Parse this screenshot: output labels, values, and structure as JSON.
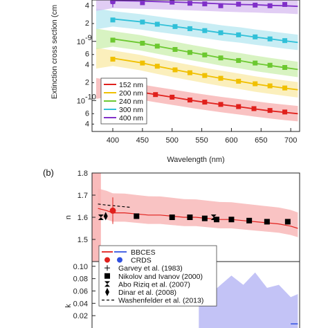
{
  "chart_data": [
    {
      "type": "line",
      "panel": "a",
      "ylabel": "Extinction cross section (cm",
      "xlabel": "Wavelength (nm)",
      "xlim": [
        365,
        715
      ],
      "ylim": [
        3e-11,
        5e-09
      ],
      "yscale": "log",
      "xticks": [
        400,
        450,
        500,
        550,
        600,
        650,
        700
      ],
      "ydecades": [
        {
          "label": "10",
          "exp": "-9",
          "value": 1e-09
        },
        {
          "label": "10",
          "exp": "-10",
          "value": 1e-10
        }
      ],
      "yminor": [
        {
          "label": "4",
          "value": 4e-09
        },
        {
          "label": "2",
          "value": 2e-09
        },
        {
          "label": "6",
          "value": 6e-10
        },
        {
          "label": "4",
          "value": 4e-10
        },
        {
          "label": "2",
          "value": 2e-10
        },
        {
          "label": "6",
          "value": 6e-11
        },
        {
          "label": "4",
          "value": 4e-11
        }
      ],
      "legend": {
        "placement": "bottom-left",
        "entries": [
          "152 nm",
          "200 nm",
          "240 nm",
          "300 nm",
          "400 nm"
        ]
      },
      "series": [
        {
          "name": "152 nm",
          "color": "#e0201c",
          "band_color": "#f6a8a8",
          "x": [
            400,
            445,
            475,
            505,
            535,
            560,
            585,
            615,
            640,
            665,
            690,
            712
          ],
          "y": [
            1.6e-10,
            1.4e-10,
            1.25e-10,
            1.12e-10,
            1e-10,
            9.2e-11,
            8.5e-11,
            7.8e-11,
            7.2e-11,
            6.7e-11,
            6.3e-11,
            6e-11
          ],
          "points_x": [
            400,
            445,
            472,
            500,
            530,
            555,
            582,
            612,
            638,
            665,
            690
          ],
          "points_y": [
            1.55e-10,
            1.4e-10,
            1.26e-10,
            1.14e-10,
            1.02e-10,
            9.4e-11,
            8.6e-11,
            7.9e-11,
            7.3e-11,
            6.8e-11,
            6.4e-11
          ]
        },
        {
          "name": "200 nm",
          "color": "#f0c000",
          "band_color": "#f9e8a0",
          "x": [
            400,
            445,
            475,
            505,
            535,
            560,
            585,
            615,
            640,
            665,
            690,
            712
          ],
          "y": [
            5.2e-10,
            4.4e-10,
            3.8e-10,
            3.3e-10,
            2.9e-10,
            2.6e-10,
            2.35e-10,
            2.1e-10,
            1.9e-10,
            1.75e-10,
            1.62e-10,
            1.52e-10
          ],
          "points_x": [
            400,
            450,
            475,
            505,
            530,
            555,
            582,
            612,
            640,
            665,
            690
          ],
          "points_y": [
            5e-10,
            4.3e-10,
            3.8e-10,
            3.3e-10,
            2.95e-10,
            2.65e-10,
            2.38e-10,
            2.12e-10,
            1.92e-10,
            1.77e-10,
            1.63e-10
          ]
        },
        {
          "name": "240 nm",
          "color": "#6cc830",
          "band_color": "#c8eea8",
          "x": [
            400,
            445,
            475,
            505,
            535,
            560,
            585,
            615,
            640,
            665,
            690,
            712
          ],
          "y": [
            1.1e-09,
            9.5e-10,
            8.3e-10,
            7.3e-10,
            6.4e-10,
            5.8e-10,
            5.2e-10,
            4.7e-10,
            4.25e-10,
            3.9e-10,
            3.6e-10,
            3.35e-10
          ],
          "points_x": [
            400,
            450,
            475,
            505,
            530,
            555,
            582,
            612,
            640,
            665,
            690
          ],
          "points_y": [
            1.05e-09,
            9.3e-10,
            8.3e-10,
            7.3e-10,
            6.5e-10,
            5.9e-10,
            5.25e-10,
            4.75e-10,
            4.3e-10,
            3.95e-10,
            3.62e-10
          ]
        },
        {
          "name": "300 nm",
          "color": "#30c0d8",
          "band_color": "#b0e6f0",
          "x": [
            400,
            445,
            475,
            505,
            535,
            560,
            585,
            615,
            640,
            665,
            690,
            712
          ],
          "y": [
            2.4e-09,
            2.15e-09,
            1.95e-09,
            1.78e-09,
            1.62e-09,
            1.5e-09,
            1.38e-09,
            1.28e-09,
            1.18e-09,
            1.1e-09,
            1.02e-09,
            9.6e-10
          ],
          "points_x": [
            400,
            450,
            475,
            505,
            530,
            555,
            582,
            612,
            640,
            665,
            690
          ],
          "points_y": [
            2.3e-09,
            2.12e-09,
            1.95e-09,
            1.78e-09,
            1.64e-09,
            1.52e-09,
            1.4e-09,
            1.29e-09,
            1.19e-09,
            1.1e-09,
            1.03e-09
          ]
        },
        {
          "name": "400 nm",
          "color": "#8030c8",
          "band_color": "#d4b8f0",
          "x": [
            400,
            445,
            475,
            505,
            535,
            560,
            585,
            615,
            640,
            665,
            690,
            712
          ],
          "y": [
            4.9e-09,
            4.8e-09,
            4.7e-09,
            4.6e-09,
            4.5e-09,
            4.4e-09,
            4.3e-09,
            4.2e-09,
            4.15e-09,
            4.05e-09,
            4e-09,
            3.9e-09
          ],
          "points_x": [
            400,
            450,
            500,
            530,
            555,
            582,
            612,
            640,
            665,
            690
          ],
          "points_y": [
            4.7e-09,
            4.5e-09,
            4.6e-09,
            4.4e-09,
            4.3e-09,
            4e-09,
            4.25e-09,
            4.1e-09,
            4e-09,
            4.2e-09
          ]
        }
      ]
    },
    {
      "type": "line",
      "panel": "b",
      "panel_label": "(b)",
      "ylabel": "n",
      "xlim": [
        365,
        715
      ],
      "ylim": [
        1.4,
        1.8
      ],
      "yticks": [
        "1.8",
        "1.7",
        "1.6",
        "1.5"
      ],
      "series": [
        {
          "name": "BBCES",
          "color": "#e0201c",
          "band_color": "#f8b4b4",
          "x": [
            375,
            390,
            400,
            420,
            440,
            460,
            480,
            500,
            520,
            540,
            560,
            580,
            600,
            620,
            640,
            660,
            680,
            700,
            712
          ],
          "y": [
            1.64,
            1.63,
            1.62,
            1.62,
            1.615,
            1.61,
            1.61,
            1.605,
            1.6,
            1.6,
            1.595,
            1.59,
            1.59,
            1.585,
            1.58,
            1.575,
            1.57,
            1.56,
            1.55
          ]
        },
        {
          "name": "Washenfelder et al. (2013)",
          "color": "#000000",
          "x": [
            375,
            390,
            410,
            430
          ],
          "y": [
            1.66,
            1.655,
            1.65,
            1.645
          ]
        }
      ],
      "markers": [
        {
          "name": "CRDS",
          "shape": "circle",
          "color": "#e0201c",
          "x": [
            400
          ],
          "y": [
            1.63
          ],
          "err": [
            0.06
          ]
        },
        {
          "name": "Nikolov and Ivanov (2000)",
          "shape": "square",
          "color": "#000000",
          "x": [
            440,
            500,
            530,
            555,
            575,
            600,
            630,
            660,
            695
          ],
          "y": [
            1.605,
            1.6,
            1.6,
            1.595,
            1.59,
            1.59,
            1.585,
            1.58,
            1.58
          ]
        },
        {
          "name": "Abo Riziq et al. (2007)",
          "shape": "bowtie",
          "color": "#000000",
          "x": [
            380,
            570
          ],
          "y": [
            1.6,
            1.6
          ]
        },
        {
          "name": "Dinar et al. (2008)",
          "shape": "diamond",
          "color": "#000000",
          "x": [
            388
          ],
          "y": [
            1.605
          ]
        }
      ]
    },
    {
      "type": "line",
      "panel": "b-k",
      "ylabel": "k",
      "xlim": [
        365,
        715
      ],
      "ylim": [
        0,
        0.1
      ],
      "yticks": [
        "0.10",
        "0.08",
        "0.06",
        "0.04",
        "0.02"
      ],
      "legend": {
        "placement": "top-left",
        "entries": [
          "BBCES",
          "CRDS",
          "Garvey et al. (1983)",
          "Nikolov and Ivanov (2000)",
          "Abo Riziq et al. (2007)",
          "Dinar et al. (2008)",
          "Washenfelder et al. (2013)"
        ]
      },
      "series": [
        {
          "name": "BBCES",
          "color": "#3050e0",
          "band_color": "#b8b8f4",
          "x": [
            545,
            570,
            600,
            620,
            640,
            660,
            680,
            700,
            712
          ],
          "y": [
            0.05,
            0.06,
            0.085,
            0.07,
            0.09,
            0.065,
            0.07,
            0.05,
            0.055
          ]
        }
      ]
    }
  ]
}
